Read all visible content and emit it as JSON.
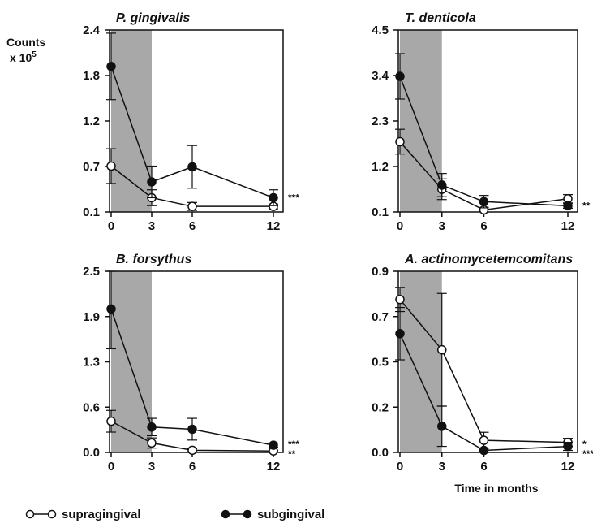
{
  "ylabel_line1": "Counts",
  "ylabel_line2": "x 10",
  "ylabel_exp": "5",
  "xlabel": "Time in months",
  "legend": {
    "open_label": "supragingival",
    "filled_label": "subgingival"
  },
  "chart_data": [
    {
      "type": "line",
      "title": "P. gingivalis",
      "x": [
        0,
        3,
        6,
        12
      ],
      "xticks": [
        "0",
        "3",
        "6",
        "12"
      ],
      "yticks": [
        "2.4",
        "1.8",
        "1.2",
        "0.7",
        "0.1"
      ],
      "ylim": [
        0.1,
        2.4
      ],
      "shaded_x": [
        0,
        3
      ],
      "significance": [
        "***"
      ],
      "series": [
        {
          "name": "supragingival",
          "values": [
            0.68,
            0.28,
            0.17,
            0.17
          ],
          "errors": [
            0.22,
            0.1,
            0.05,
            0.03
          ]
        },
        {
          "name": "subgingival",
          "values": [
            1.94,
            0.48,
            0.67,
            0.28
          ],
          "errors": [
            0.42,
            0.2,
            0.27,
            0.1
          ]
        }
      ]
    },
    {
      "type": "line",
      "title": "T. denticola",
      "x": [
        0,
        3,
        6,
        12
      ],
      "xticks": [
        "0",
        "3",
        "6",
        "12"
      ],
      "yticks": [
        "4.5",
        "3.4",
        "2.3",
        "1.2",
        "0.1"
      ],
      "ylim": [
        0.1,
        4.5
      ],
      "shaded_x": [
        0,
        3
      ],
      "significance": [
        "**"
      ],
      "series": [
        {
          "name": "supragingival",
          "values": [
            1.8,
            0.65,
            0.15,
            0.42
          ],
          "errors": [
            0.3,
            0.25,
            0.06,
            0.1
          ]
        },
        {
          "name": "subgingival",
          "values": [
            3.38,
            0.75,
            0.35,
            0.25
          ],
          "errors": [
            0.55,
            0.28,
            0.15,
            0.06
          ]
        }
      ]
    },
    {
      "type": "line",
      "title": "B. forsythus",
      "x": [
        0,
        3,
        6,
        12
      ],
      "xticks": [
        "0",
        "3",
        "6",
        "12"
      ],
      "yticks": [
        "2.5",
        "1.9",
        "1.3",
        "0.6",
        "0.0"
      ],
      "ylim": [
        0.0,
        2.5
      ],
      "shaded_x": [
        0,
        3
      ],
      "significance": [
        "***",
        "**"
      ],
      "series": [
        {
          "name": "supragingival",
          "values": [
            0.43,
            0.13,
            0.03,
            0.02
          ],
          "errors": [
            0.15,
            0.07,
            0.02,
            0.01
          ]
        },
        {
          "name": "subgingival",
          "values": [
            1.98,
            0.35,
            0.32,
            0.1
          ],
          "errors": [
            0.55,
            0.12,
            0.15,
            0.03
          ]
        }
      ]
    },
    {
      "type": "line",
      "title": "A. actinomycetemcomitans",
      "x": [
        0,
        3,
        6,
        12
      ],
      "xticks": [
        "0",
        "3",
        "6",
        "12"
      ],
      "yticks": [
        "0.9",
        "0.7",
        "0.5",
        "0.2",
        "0.0"
      ],
      "ylim": [
        0.0,
        0.9
      ],
      "shaded_x": [
        0,
        3
      ],
      "significance": [
        "*",
        "***"
      ],
      "series": [
        {
          "name": "supragingival",
          "values": [
            0.76,
            0.51,
            0.06,
            0.05
          ],
          "errors": [
            0.06,
            0.28,
            0.04,
            0.02
          ]
        },
        {
          "name": "subgingival",
          "values": [
            0.59,
            0.13,
            0.01,
            0.03
          ],
          "errors": [
            0.13,
            0.1,
            0.01,
            0.02
          ]
        }
      ]
    }
  ]
}
